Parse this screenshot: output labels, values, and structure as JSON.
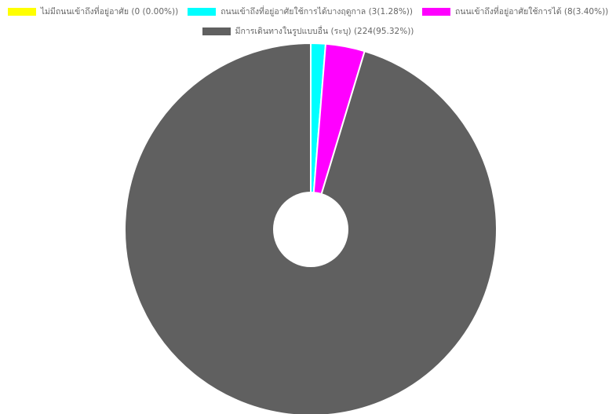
{
  "chart_data": {
    "type": "pie",
    "donut": true,
    "title": "",
    "legend_position": "top",
    "slices": [
      {
        "label": "ไม่มีถนนเข้าถึงที่อยู่อาศัย",
        "value": 0,
        "percent": 0.0,
        "legend_text": "ไม่มีถนนเข้าถึงที่อยู่อาศัย  (0 (0.00%))",
        "color": "#ffff00"
      },
      {
        "label": "ถนนเข้าถึงที่อยู่อาศัยใช้การได้บางฤดูกาล",
        "value": 3,
        "percent": 1.28,
        "legend_text": "ถนนเข้าถึงที่อยู่อาศัยใช้การได้บางฤดูกาล (3(1.28%))",
        "color": "#00ffff"
      },
      {
        "label": "ถนนเข้าถึงที่อยู่อาศัยใช้การได้",
        "value": 8,
        "percent": 3.4,
        "legend_text": "ถนนเข้าถึงที่อยู่อาศัยใช้การได้ (8(3.40%))",
        "color": "#ff00ff"
      },
      {
        "label": "มีการเดินทางในรูปแบบอื่น (ระบุ)",
        "value": 224,
        "percent": 95.32,
        "legend_text": "มีการเดินทางในรูปแบบอื่น (ระบุ) (224(95.32%))",
        "color": "#606060"
      }
    ]
  }
}
